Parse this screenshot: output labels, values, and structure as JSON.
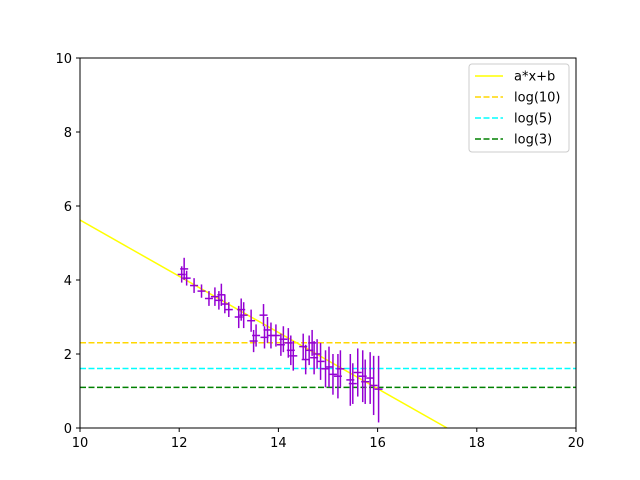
{
  "chart_data": {
    "type": "scatter",
    "xlim": [
      10,
      20
    ],
    "ylim": [
      0,
      10
    ],
    "x_ticks": [
      10,
      12,
      14,
      16,
      18,
      20
    ],
    "y_ticks": [
      0,
      2,
      4,
      6,
      8,
      10
    ],
    "grid": false,
    "legend_position": "top-right",
    "fit_line": {
      "name": "a*x+b",
      "color": "#ffff00",
      "points": [
        [
          10,
          5.62
        ],
        [
          17.4,
          0
        ]
      ]
    },
    "hlines": [
      {
        "name": "log(10)",
        "y": 2.3026,
        "color": "#ffd700",
        "style": "dashed"
      },
      {
        "name": "log(5)",
        "y": 1.6094,
        "color": "#00ffff",
        "style": "dashed"
      },
      {
        "name": "log(3)",
        "y": 1.0986,
        "color": "#008000",
        "style": "dashed"
      }
    ],
    "errorbar_series": {
      "color": "#9400d3",
      "points": [
        [
          12.05,
          4.15,
          0.22
        ],
        [
          12.1,
          4.3,
          0.3
        ],
        [
          12.15,
          4.05,
          0.2
        ],
        [
          12.3,
          3.85,
          0.2
        ],
        [
          12.45,
          3.7,
          0.18
        ],
        [
          12.6,
          3.5,
          0.2
        ],
        [
          12.72,
          3.55,
          0.25
        ],
        [
          12.8,
          3.45,
          0.25
        ],
        [
          12.85,
          3.6,
          0.3
        ],
        [
          12.92,
          3.35,
          0.25
        ],
        [
          13.0,
          3.2,
          0.2
        ],
        [
          13.2,
          3.0,
          0.3
        ],
        [
          13.25,
          3.2,
          0.3
        ],
        [
          13.3,
          3.05,
          0.35
        ],
        [
          13.45,
          2.9,
          0.3
        ],
        [
          13.5,
          2.35,
          0.3
        ],
        [
          13.55,
          2.5,
          0.3
        ],
        [
          13.7,
          3.05,
          0.3
        ],
        [
          13.72,
          2.45,
          0.3
        ],
        [
          13.78,
          2.65,
          0.35
        ],
        [
          13.85,
          2.5,
          0.35
        ],
        [
          13.95,
          2.5,
          0.3
        ],
        [
          14.05,
          2.25,
          0.3
        ],
        [
          14.1,
          2.4,
          0.35
        ],
        [
          14.2,
          2.3,
          0.4
        ],
        [
          14.25,
          2.1,
          0.4
        ],
        [
          14.3,
          1.95,
          0.4
        ],
        [
          14.5,
          2.2,
          0.35
        ],
        [
          14.55,
          1.85,
          0.4
        ],
        [
          14.62,
          2.1,
          0.4
        ],
        [
          14.68,
          2.3,
          0.35
        ],
        [
          14.72,
          1.9,
          0.45
        ],
        [
          14.78,
          2.0,
          0.4
        ],
        [
          14.85,
          1.8,
          0.5
        ],
        [
          14.95,
          1.6,
          0.5
        ],
        [
          15.02,
          1.65,
          0.55
        ],
        [
          15.1,
          1.45,
          0.55
        ],
        [
          15.2,
          1.4,
          0.6
        ],
        [
          15.25,
          1.6,
          0.5
        ],
        [
          15.45,
          1.3,
          0.7
        ],
        [
          15.5,
          1.2,
          0.55
        ],
        [
          15.6,
          1.5,
          0.65
        ],
        [
          15.7,
          1.4,
          0.7
        ],
        [
          15.75,
          1.25,
          0.6
        ],
        [
          15.85,
          1.35,
          0.7
        ],
        [
          15.92,
          1.15,
          0.8
        ],
        [
          16.02,
          1.05,
          0.9
        ]
      ]
    },
    "legend": [
      "a*x+b",
      "log(10)",
      "log(5)",
      "log(3)"
    ]
  }
}
